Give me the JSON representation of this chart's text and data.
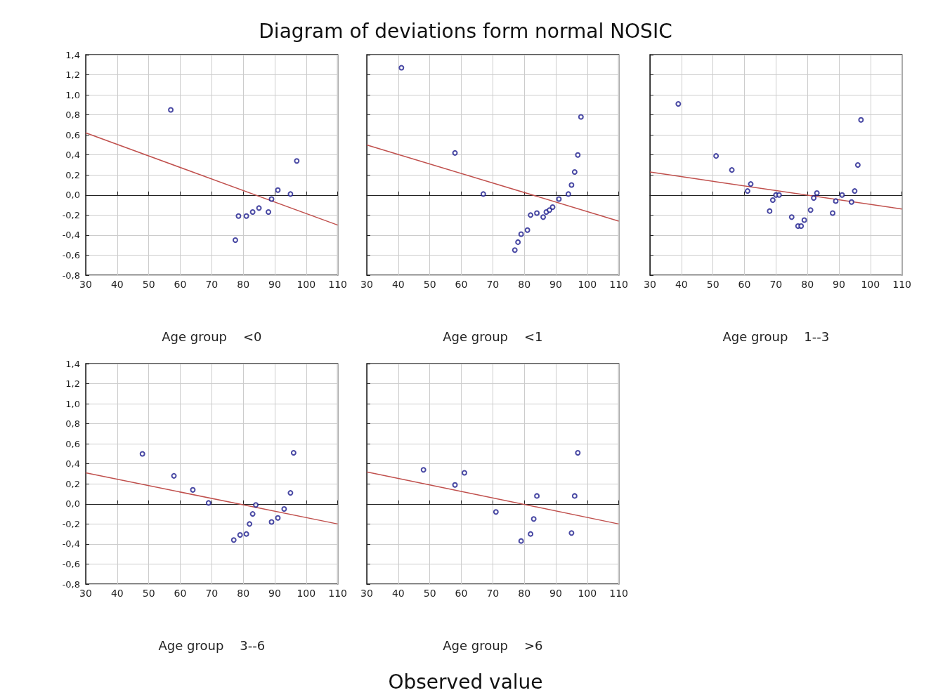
{
  "chart_data": [
    {
      "type": "scatter",
      "title": "Diagram of deviations form normal NOSIC",
      "xlabel": "Age group    <0",
      "xlim": [
        30,
        110
      ],
      "xticks": [
        30,
        40,
        50,
        60,
        70,
        80,
        90,
        100,
        110
      ],
      "ylim": [
        -0.8,
        1.4
      ],
      "yticks": [
        {
          "value": -0.8,
          "label": "-0,8"
        },
        {
          "value": -0.6,
          "label": "-0,6"
        },
        {
          "value": -0.4,
          "label": "-0,4"
        },
        {
          "value": -0.2,
          "label": "-0,2"
        },
        {
          "value": 0,
          "label": "0,0"
        },
        {
          "value": 0.2,
          "label": "0,2"
        },
        {
          "value": 0.4,
          "label": "0,4"
        },
        {
          "value": 0.6,
          "label": "0,6"
        },
        {
          "value": 0.8,
          "label": "0,8"
        },
        {
          "value": 1.0,
          "label": "1,0"
        },
        {
          "value": 1.2,
          "label": "1,2"
        },
        {
          "value": 1.4,
          "label": "1,4"
        }
      ],
      "grid": true,
      "series": [
        {
          "color": "#1a1a8c",
          "marker": "circle",
          "x": [
            57,
            77.5,
            78.5,
            81,
            83,
            85,
            88,
            89,
            91,
            95,
            97
          ],
          "values": [
            0.85,
            -0.45,
            -0.21,
            -0.21,
            -0.17,
            -0.13,
            -0.17,
            -0.04,
            0.05,
            0.01,
            0.34
          ]
        },
        {
          "type": "line",
          "marker": "none",
          "color": "#c0504d",
          "x": [
            30,
            110
          ],
          "values": [
            0.62,
            -0.3
          ]
        }
      ]
    },
    {
      "type": "scatter",
      "xlabel": "Age group    <1",
      "xlim": [
        30,
        110
      ],
      "xticks": [
        30,
        40,
        50,
        60,
        70,
        80,
        90,
        100,
        110
      ],
      "ylim": [
        -0.8,
        1.4
      ],
      "yticks": [
        {
          "value": -0.8,
          "label": null
        },
        {
          "value": -0.6,
          "label": null
        },
        {
          "value": -0.4,
          "label": null
        },
        {
          "value": -0.2,
          "label": null
        },
        {
          "value": 0,
          "label": null
        },
        {
          "value": 0.2,
          "label": null
        },
        {
          "value": 0.4,
          "label": null
        },
        {
          "value": 0.6,
          "label": null
        },
        {
          "value": 0.8,
          "label": null
        },
        {
          "value": 1.0,
          "label": null
        },
        {
          "value": 1.2,
          "label": null
        },
        {
          "value": 1.4,
          "label": null
        }
      ],
      "grid": true,
      "tick_labels": "x",
      "series": [
        {
          "color": "#1a1a8c",
          "marker": "circle",
          "x": [
            41,
            58,
            67,
            77,
            78,
            79,
            81,
            82,
            84,
            86,
            87,
            88,
            89,
            91,
            94,
            95,
            96,
            97,
            98
          ],
          "values": [
            1.27,
            0.42,
            0.01,
            -0.55,
            -0.47,
            -0.39,
            -0.35,
            -0.2,
            -0.18,
            -0.22,
            -0.17,
            -0.15,
            -0.12,
            -0.04,
            0.01,
            0.1,
            0.23,
            0.4,
            0.78
          ]
        },
        {
          "type": "line",
          "marker": "none",
          "color": "#c0504d",
          "x": [
            30,
            110
          ],
          "values": [
            0.5,
            -0.26
          ]
        }
      ]
    },
    {
      "type": "scatter",
      "xlabel": "Age group    1--3",
      "xlim": [
        30,
        110
      ],
      "xticks": [
        30,
        40,
        50,
        60,
        70,
        80,
        90,
        100,
        110
      ],
      "ylim": [
        -0.8,
        1.4
      ],
      "yticks": [
        {
          "value": -0.8,
          "label": null
        },
        {
          "value": -0.6,
          "label": null
        },
        {
          "value": -0.4,
          "label": null
        },
        {
          "value": -0.2,
          "label": null
        },
        {
          "value": 0,
          "label": null
        },
        {
          "value": 0.2,
          "label": null
        },
        {
          "value": 0.4,
          "label": null
        },
        {
          "value": 0.6,
          "label": null
        },
        {
          "value": 0.8,
          "label": null
        },
        {
          "value": 1.0,
          "label": null
        },
        {
          "value": 1.2,
          "label": null
        },
        {
          "value": 1.4,
          "label": null
        }
      ],
      "grid": true,
      "tick_labels": "x",
      "series": [
        {
          "color": "#1a1a8c",
          "marker": "circle",
          "x": [
            39,
            51,
            56,
            61,
            62,
            68,
            69,
            70,
            71,
            75,
            77,
            78,
            79,
            81,
            82,
            83,
            88,
            89,
            91,
            94,
            95,
            96,
            97
          ],
          "values": [
            0.91,
            0.39,
            0.25,
            0.04,
            0.11,
            -0.16,
            -0.05,
            0,
            0,
            -0.22,
            -0.31,
            -0.31,
            -0.25,
            -0.15,
            -0.03,
            0.02,
            -0.18,
            -0.06,
            0,
            -0.07,
            0.04,
            0.3,
            0.75
          ]
        },
        {
          "type": "line",
          "marker": "none",
          "color": "#c0504d",
          "x": [
            30,
            110
          ],
          "values": [
            0.23,
            -0.14
          ]
        }
      ]
    },
    {
      "type": "scatter",
      "xlabel": "Age group    3--6",
      "xlim": [
        30,
        110
      ],
      "xticks": [
        30,
        40,
        50,
        60,
        70,
        80,
        90,
        100,
        110
      ],
      "ylim": [
        -0.8,
        1.4
      ],
      "yticks": [
        {
          "value": -0.8,
          "label": "-0,8"
        },
        {
          "value": -0.6,
          "label": "-0,6"
        },
        {
          "value": -0.4,
          "label": "-0,4"
        },
        {
          "value": -0.2,
          "label": "-0,2"
        },
        {
          "value": 0,
          "label": "0,0"
        },
        {
          "value": 0.2,
          "label": "0,2"
        },
        {
          "value": 0.4,
          "label": "0,4"
        },
        {
          "value": 0.6,
          "label": "0,6"
        },
        {
          "value": 0.8,
          "label": "0,8"
        },
        {
          "value": 1.0,
          "label": "1,0"
        },
        {
          "value": 1.2,
          "label": "1,2"
        },
        {
          "value": 1.4,
          "label": "1,4"
        }
      ],
      "grid": true,
      "series": [
        {
          "color": "#1a1a8c",
          "marker": "circle",
          "x": [
            48,
            58,
            64,
            69,
            77,
            79,
            81,
            82,
            83,
            84,
            89,
            91,
            93,
            95,
            96
          ],
          "values": [
            0.5,
            0.28,
            0.14,
            0.01,
            -0.36,
            -0.31,
            -0.3,
            -0.2,
            -0.1,
            -0.01,
            -0.18,
            -0.14,
            -0.05,
            0.11,
            0.51
          ]
        },
        {
          "type": "line",
          "marker": "none",
          "color": "#c0504d",
          "x": [
            30,
            110
          ],
          "values": [
            0.31,
            -0.2
          ]
        }
      ]
    },
    {
      "type": "scatter",
      "xlabel": "Age group    >6",
      "xlim": [
        30,
        110
      ],
      "xticks": [
        30,
        40,
        50,
        60,
        70,
        80,
        90,
        100,
        110
      ],
      "ylim": [
        -0.8,
        1.4
      ],
      "yticks": [
        {
          "value": -0.8,
          "label": null
        },
        {
          "value": -0.6,
          "label": null
        },
        {
          "value": -0.4,
          "label": null
        },
        {
          "value": -0.2,
          "label": null
        },
        {
          "value": 0,
          "label": null
        },
        {
          "value": 0.2,
          "label": null
        },
        {
          "value": 0.4,
          "label": null
        },
        {
          "value": 0.6,
          "label": null
        },
        {
          "value": 0.8,
          "label": null
        },
        {
          "value": 1.0,
          "label": null
        },
        {
          "value": 1.2,
          "label": null
        },
        {
          "value": 1.4,
          "label": null
        }
      ],
      "grid": true,
      "tick_labels": "x",
      "annotations": [
        "Observed value"
      ],
      "series": [
        {
          "color": "#1a1a8c",
          "marker": "circle",
          "x": [
            48,
            58,
            61,
            71,
            79,
            82,
            83,
            84,
            95,
            96,
            97
          ],
          "values": [
            0.34,
            0.19,
            0.31,
            -0.08,
            -0.37,
            -0.3,
            -0.15,
            0.08,
            -0.29,
            0.08,
            0.51
          ]
        },
        {
          "type": "line",
          "marker": "none",
          "color": "#c0504d",
          "x": [
            30,
            110
          ],
          "values": [
            0.32,
            -0.2
          ]
        }
      ]
    }
  ]
}
